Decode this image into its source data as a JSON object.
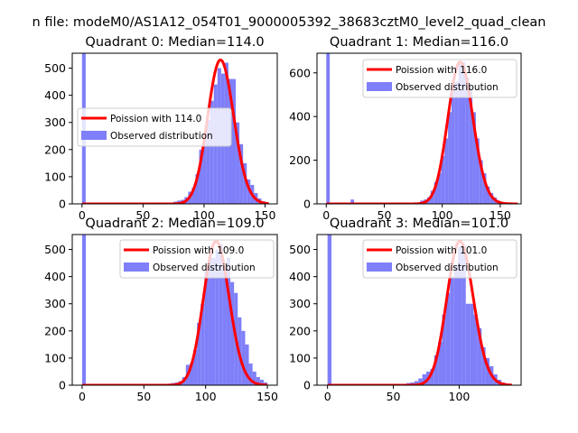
{
  "figure": {
    "suptitle": "n file: modeM0/AS1A12_054T01_9000005392_38683cztM0_level2_quad_clean"
  },
  "colors": {
    "hist_fill": "#7f7ff9",
    "fit_line": "#ff0000",
    "axis": "#000000",
    "legend_border": "#cccccc"
  },
  "chart_data": [
    {
      "type": "bar",
      "title": "Quadrant 0: Median=114.0",
      "xlabel": "",
      "ylabel": "",
      "xlim": [
        -8,
        160
      ],
      "ylim": [
        0,
        555
      ],
      "xticks": [
        0,
        50,
        100,
        150
      ],
      "yticks": [
        0,
        100,
        200,
        300,
        400,
        500
      ],
      "legend": {
        "position": "center-left",
        "entries": [
          "Poission with 114.0",
          "Observed distribution"
        ]
      },
      "grid": false,
      "series": [
        {
          "name": "Observed distribution",
          "kind": "histogram",
          "bin_width": 3,
          "bins": [
            [
              0,
              555
            ],
            [
              75,
              8
            ],
            [
              78,
              12
            ],
            [
              81,
              15
            ],
            [
              84,
              25
            ],
            [
              87,
              45
            ],
            [
              90,
              60
            ],
            [
              93,
              110
            ],
            [
              96,
              200
            ],
            [
              99,
              240
            ],
            [
              102,
              310
            ],
            [
              105,
              380
            ],
            [
              108,
              440
            ],
            [
              111,
              500
            ],
            [
              114,
              480
            ],
            [
              117,
              520
            ],
            [
              120,
              460
            ],
            [
              123,
              460
            ],
            [
              126,
              300
            ],
            [
              129,
              220
            ],
            [
              132,
              150
            ],
            [
              135,
              90
            ],
            [
              138,
              70
            ],
            [
              141,
              40
            ],
            [
              144,
              20
            ],
            [
              147,
              10
            ],
            [
              150,
              5
            ]
          ]
        },
        {
          "name": "Poission with 114.0",
          "kind": "poisson",
          "mu": 114,
          "scale": 530,
          "range": [
            0,
            153
          ]
        }
      ]
    },
    {
      "type": "bar",
      "title": "Quadrant 1: Median=116.0",
      "xlabel": "",
      "ylabel": "",
      "xlim": [
        -8,
        168
      ],
      "ylim": [
        0,
        690
      ],
      "xticks": [
        0,
        50,
        100,
        150
      ],
      "yticks": [
        0,
        200,
        400,
        600
      ],
      "legend": {
        "position": "upper-right",
        "entries": [
          "Poission with 116.0",
          "Observed distribution"
        ]
      },
      "grid": false,
      "series": [
        {
          "name": "Observed distribution",
          "kind": "histogram",
          "bin_width": 3,
          "bins": [
            [
              0,
              690
            ],
            [
              21,
              20
            ],
            [
              51,
              5
            ],
            [
              81,
              15
            ],
            [
              84,
              20
            ],
            [
              87,
              30
            ],
            [
              90,
              60
            ],
            [
              93,
              100
            ],
            [
              96,
              140
            ],
            [
              99,
              220
            ],
            [
              102,
              300
            ],
            [
              105,
              420
            ],
            [
              108,
              520
            ],
            [
              111,
              560
            ],
            [
              114,
              640
            ],
            [
              117,
              650
            ],
            [
              120,
              580
            ],
            [
              123,
              540
            ],
            [
              126,
              420
            ],
            [
              129,
              300
            ],
            [
              132,
              200
            ],
            [
              135,
              140
            ],
            [
              138,
              80
            ],
            [
              141,
              50
            ],
            [
              144,
              30
            ],
            [
              147,
              15
            ],
            [
              150,
              8
            ],
            [
              153,
              4
            ],
            [
              156,
              2
            ]
          ]
        },
        {
          "name": "Poission with 116.0",
          "kind": "poisson",
          "mu": 116,
          "scale": 650,
          "range": [
            0,
            165
          ]
        }
      ]
    },
    {
      "type": "bar",
      "title": "Quadrant 2: Median=109.0",
      "xlabel": "",
      "ylabel": "",
      "xlim": [
        -8,
        158
      ],
      "ylim": [
        0,
        555
      ],
      "xticks": [
        0,
        50,
        100,
        150
      ],
      "yticks": [
        0,
        100,
        200,
        300,
        400,
        500
      ],
      "legend": {
        "position": "upper-right",
        "entries": [
          "Poission with 109.0",
          "Observed distribution"
        ]
      },
      "grid": false,
      "series": [
        {
          "name": "Observed distribution",
          "kind": "histogram",
          "bin_width": 3,
          "bins": [
            [
              0,
              555
            ],
            [
              66,
              5
            ],
            [
              69,
              5
            ],
            [
              72,
              8
            ],
            [
              75,
              10
            ],
            [
              78,
              15
            ],
            [
              81,
              30
            ],
            [
              84,
              75
            ],
            [
              87,
              80
            ],
            [
              90,
              130
            ],
            [
              93,
              230
            ],
            [
              96,
              300
            ],
            [
              99,
              420
            ],
            [
              102,
              470
            ],
            [
              105,
              470
            ],
            [
              108,
              500
            ],
            [
              111,
              520
            ],
            [
              114,
              430
            ],
            [
              117,
              470
            ],
            [
              120,
              380
            ],
            [
              123,
              340
            ],
            [
              126,
              250
            ],
            [
              129,
              200
            ],
            [
              132,
              150
            ],
            [
              135,
              80
            ],
            [
              138,
              50
            ],
            [
              141,
              30
            ],
            [
              144,
              20
            ],
            [
              147,
              10
            ]
          ]
        },
        {
          "name": "Poission with 109.0",
          "kind": "poisson",
          "mu": 109,
          "scale": 530,
          "range": [
            0,
            150
          ]
        }
      ]
    },
    {
      "type": "bar",
      "title": "Quadrant 3: Median=101.0",
      "xlabel": "",
      "ylabel": "",
      "xlim": [
        -8,
        147
      ],
      "ylim": [
        0,
        555
      ],
      "xticks": [
        0,
        50,
        100
      ],
      "yticks": [
        0,
        100,
        200,
        300,
        400,
        500
      ],
      "legend": {
        "position": "upper-right",
        "entries": [
          "Poission with 101.0",
          "Observed distribution"
        ]
      },
      "grid": false,
      "series": [
        {
          "name": "Observed distribution",
          "kind": "histogram",
          "bin_width": 3,
          "bins": [
            [
              0,
              555
            ],
            [
              57,
              5
            ],
            [
              60,
              8
            ],
            [
              63,
              10
            ],
            [
              66,
              15
            ],
            [
              69,
              25
            ],
            [
              72,
              40
            ],
            [
              75,
              50
            ],
            [
              78,
              60
            ],
            [
              81,
              110
            ],
            [
              84,
              160
            ],
            [
              87,
              260
            ],
            [
              90,
              340
            ],
            [
              93,
              400
            ],
            [
              96,
              440
            ],
            [
              99,
              510
            ],
            [
              102,
              510
            ],
            [
              105,
              300
            ],
            [
              108,
              300
            ],
            [
              111,
              260
            ],
            [
              114,
              210
            ],
            [
              117,
              140
            ],
            [
              120,
              100
            ],
            [
              123,
              70
            ],
            [
              126,
              40
            ],
            [
              129,
              20
            ],
            [
              132,
              10
            ],
            [
              135,
              5
            ]
          ]
        },
        {
          "name": "Poission with 101.0",
          "kind": "poisson",
          "mu": 101,
          "scale": 530,
          "range": [
            0,
            140
          ]
        }
      ]
    }
  ]
}
